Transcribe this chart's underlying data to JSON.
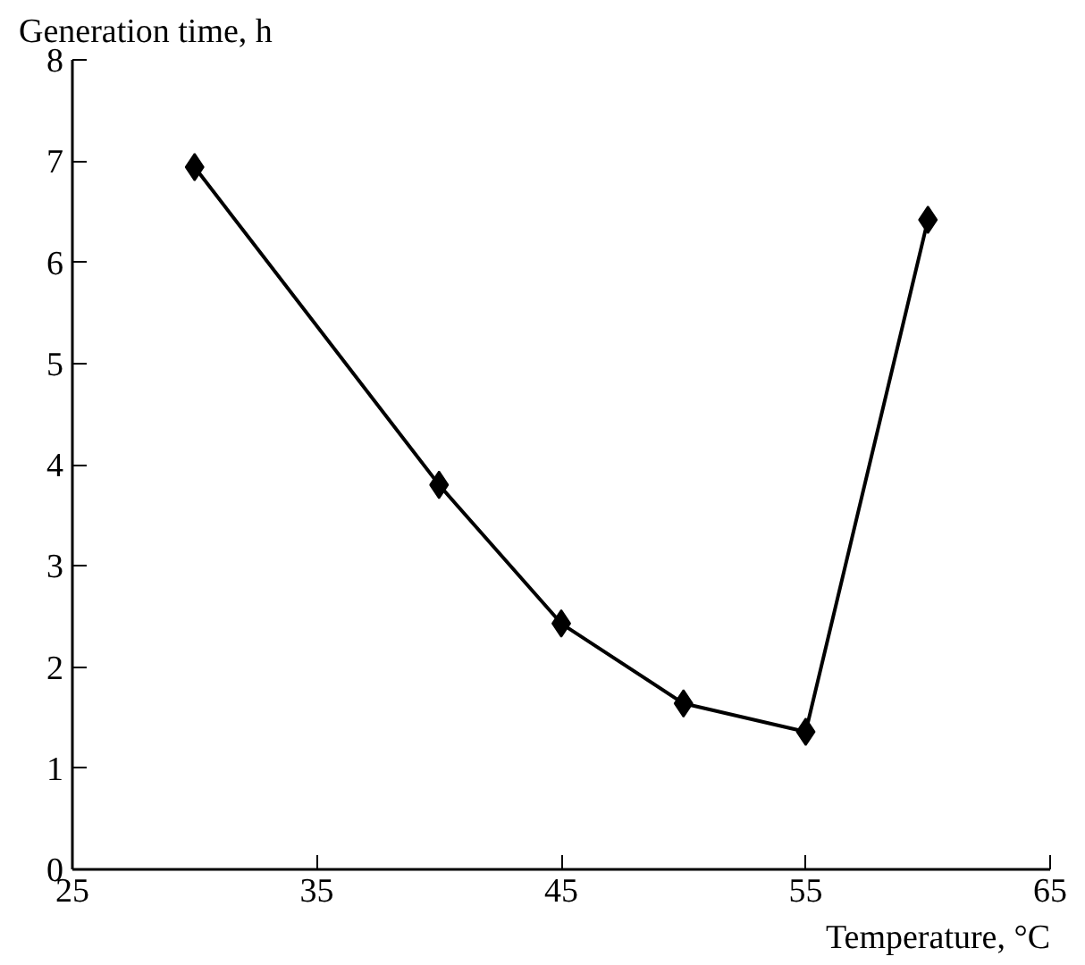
{
  "chart_data": {
    "type": "line",
    "ylabel": "Generation time, h",
    "xlabel": "Temperature, °C",
    "x": [
      30,
      40,
      45,
      50,
      55,
      60
    ],
    "series": [
      {
        "color": "#000000",
        "values": [
          6.94,
          3.8,
          2.43,
          1.64,
          1.36,
          6.42
        ]
      }
    ],
    "xlim": [
      25,
      65
    ],
    "xticks": [
      25,
      35,
      45,
      55,
      65
    ],
    "ylim": [
      0,
      8
    ],
    "yticks": [
      0,
      1,
      2,
      3,
      4,
      5,
      6,
      7,
      8
    ],
    "marker": "diamond",
    "line_style": "solid"
  }
}
